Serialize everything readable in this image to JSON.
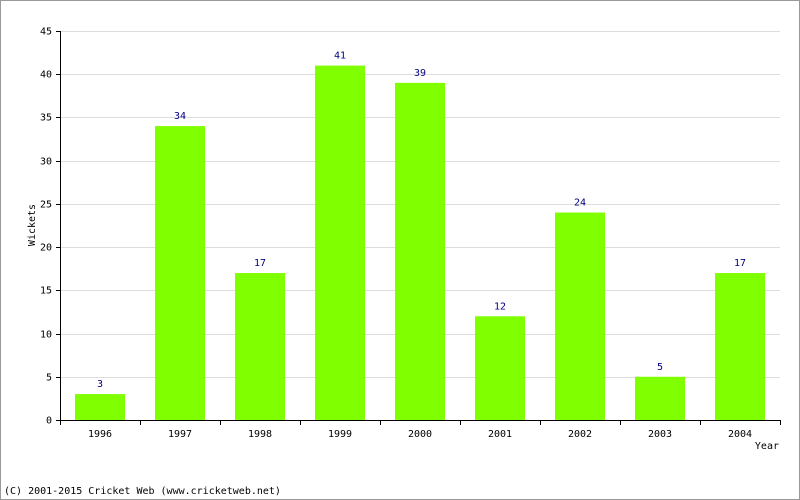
{
  "chart_data": {
    "type": "bar",
    "x_label": "Year",
    "y_label": "Wickets",
    "categories": [
      "1996",
      "1997",
      "1998",
      "1999",
      "2000",
      "2001",
      "2002",
      "2003",
      "2004"
    ],
    "values": [
      3,
      34,
      17,
      41,
      39,
      12,
      24,
      5,
      17
    ],
    "color": "#7fff00",
    "label_color": "#000080",
    "ylim": [
      0,
      45
    ],
    "yticks": [
      0,
      5,
      10,
      15,
      20,
      25,
      30,
      35,
      40,
      45
    ],
    "grid": true,
    "footer": "(C) 2001-2015 Cricket Web (www.cricketweb.net)"
  }
}
